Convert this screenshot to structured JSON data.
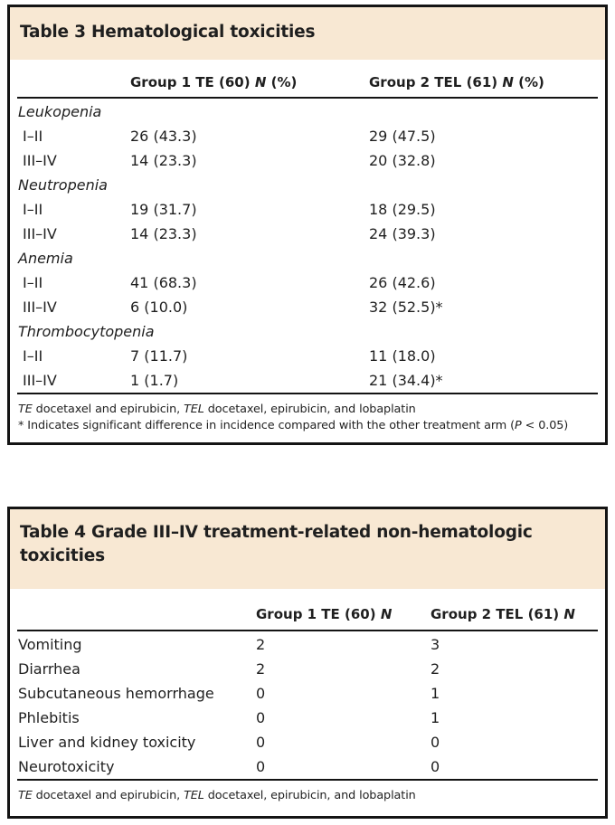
{
  "colors": {
    "band": "#f8e8d3",
    "border": "#141414",
    "text": "#1f1f1f"
  },
  "table3": {
    "title": "Table 3 Hematological toxicities",
    "headers": {
      "group1": {
        "pre": "Group 1 TE (60) ",
        "n": "N",
        "post": " (%)"
      },
      "group2": {
        "pre": "Group 2 TEL (61) ",
        "n": "N",
        "post": " (%)"
      }
    },
    "rows": [
      {
        "label": "Leukopenia",
        "category": true
      },
      {
        "label": "I–II",
        "c1": "26 (43.3)",
        "c2": "29 (47.5)"
      },
      {
        "label": "III–IV",
        "c1": "14 (23.3)",
        "c2": "20 (32.8)"
      },
      {
        "label": "Neutropenia",
        "category": true
      },
      {
        "label": "I–II",
        "c1": "19 (31.7)",
        "c2": "18 (29.5)"
      },
      {
        "label": "III–IV",
        "c1": "14 (23.3)",
        "c2": "24 (39.3)"
      },
      {
        "label": "Anemia",
        "category": true
      },
      {
        "label": "I–II",
        "c1": "41 (68.3)",
        "c2": "26 (42.6)"
      },
      {
        "label": "III–IV",
        "c1": "6 (10.0)",
        "c2": "32 (52.5)*"
      },
      {
        "label": "Thrombocytopenia",
        "category": true
      },
      {
        "label": "I–II",
        "c1": "7 (11.7)",
        "c2": "11 (18.0)"
      },
      {
        "label": "III–IV",
        "c1": "1 (1.7)",
        "c2": "21 (34.4)*"
      }
    ],
    "footnote1": {
      "abbr1": "TE",
      "text1": " docetaxel and epirubicin, ",
      "abbr2": "TEL",
      "text2": " docetaxel, epirubicin, and lobaplatin"
    },
    "footnote2": {
      "pre": "* Indicates significant difference in incidence compared with the other treatment arm (",
      "p": "P",
      "post": " < 0.05)"
    }
  },
  "table4": {
    "title": "Table 4 Grade III–IV treatment-related non-hematologic toxicities",
    "headers": {
      "group1": {
        "pre": "Group 1 TE (60) ",
        "n": "N",
        "post": ""
      },
      "group2": {
        "pre": "Group 2 TEL (61) ",
        "n": "N",
        "post": ""
      }
    },
    "rows": [
      {
        "label": "Vomiting",
        "c1": "2",
        "c2": "3"
      },
      {
        "label": "Diarrhea",
        "c1": "2",
        "c2": "2"
      },
      {
        "label": "Subcutaneous hemorrhage",
        "c1": "0",
        "c2": "1"
      },
      {
        "label": "Phlebitis",
        "c1": "0",
        "c2": "1"
      },
      {
        "label": "Liver and kidney toxicity",
        "c1": "0",
        "c2": "0"
      },
      {
        "label": "Neurotoxicity",
        "c1": "0",
        "c2": "0"
      }
    ],
    "footnote1": {
      "abbr1": "TE",
      "text1": " docetaxel and epirubicin, ",
      "abbr2": "TEL",
      "text2": " docetaxel, epirubicin, and lobaplatin"
    }
  }
}
